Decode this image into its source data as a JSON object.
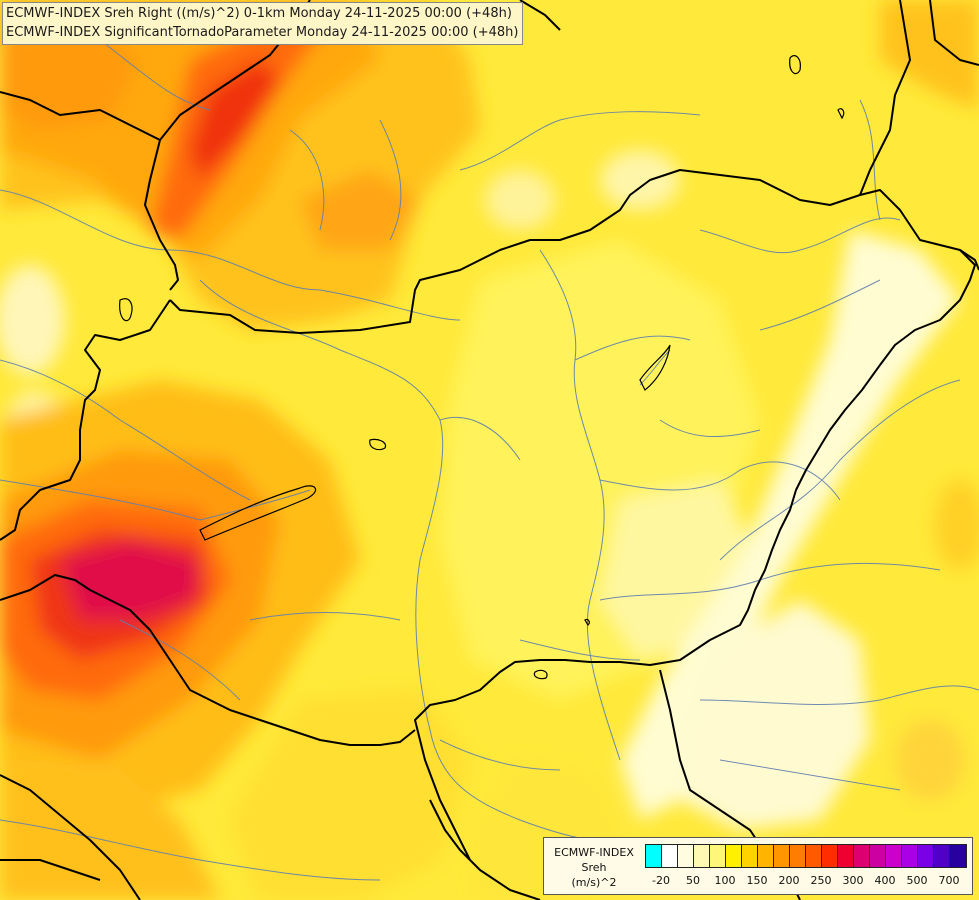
{
  "header": {
    "line1": "ECMWF-INDEX Sreh Right ((m/s)^2) 0-1km Monday 24-11-2025 00:00 (+48h)",
    "line2": "ECMWF-INDEX SignificantTornadoParameter Monday 24-11-2025 00:00 (+48h)"
  },
  "legend": {
    "title_line1": "ECMWF-INDEX",
    "title_line2": "Sreh",
    "title_line3": "(m/s)^2",
    "colors": [
      "#00ffff",
      "#ffffff",
      "#fffce0",
      "#fff9b3",
      "#fff67a",
      "#fff000",
      "#ffd200",
      "#ffb400",
      "#ff9600",
      "#ff7d00",
      "#ff5a00",
      "#ff2d00",
      "#ee0030",
      "#dd0070",
      "#cc00a0",
      "#cc00cc",
      "#aa00e6",
      "#7a00e6",
      "#5000c8",
      "#2800a0"
    ],
    "ticks": [
      {
        "label": "-20",
        "at": 1
      },
      {
        "label": "50",
        "at": 3
      },
      {
        "label": "100",
        "at": 5
      },
      {
        "label": "150",
        "at": 7
      },
      {
        "label": "200",
        "at": 9
      },
      {
        "label": "250",
        "at": 11
      },
      {
        "label": "300",
        "at": 13
      },
      {
        "label": "400",
        "at": 15
      },
      {
        "label": "500",
        "at": 17
      },
      {
        "label": "700",
        "at": 19
      }
    ]
  }
}
